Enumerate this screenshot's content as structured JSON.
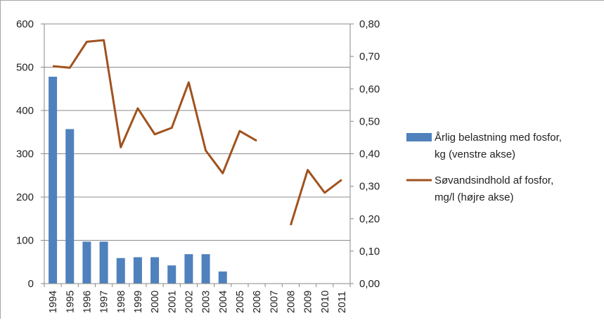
{
  "chart_data": {
    "type": "bar",
    "categories": [
      "1994",
      "1995",
      "1996",
      "1997",
      "1998",
      "1999",
      "2000",
      "2001",
      "2002",
      "2003",
      "2004",
      "2005",
      "2006",
      "2007",
      "2008",
      "2009",
      "2010",
      "2011"
    ],
    "series": [
      {
        "name": "Årlig belastning med fosfor, kg (venstre akse)",
        "type": "bar",
        "axis": "left",
        "color": "#4f81bd",
        "values": [
          478,
          357,
          97,
          97,
          59,
          61,
          61,
          42,
          68,
          68,
          28,
          null,
          null,
          null,
          null,
          null,
          null,
          null
        ]
      },
      {
        "name": "Søvandsindhold af fosfor, mg/l (højre akse)",
        "type": "line",
        "axis": "right",
        "color": "#a0521e",
        "values": [
          0.67,
          0.665,
          0.745,
          0.75,
          0.42,
          0.54,
          0.46,
          0.48,
          0.62,
          0.41,
          0.34,
          0.47,
          0.44,
          null,
          0.18,
          0.35,
          0.28,
          0.32
        ]
      }
    ],
    "left_axis": {
      "ylim": [
        0,
        600
      ],
      "ticks": [
        "0",
        "100",
        "200",
        "300",
        "400",
        "500",
        "600"
      ]
    },
    "right_axis": {
      "ylim": [
        0,
        0.8
      ],
      "ticks": [
        "0,00",
        "0,10",
        "0,20",
        "0,30",
        "0,40",
        "0,50",
        "0,60",
        "0,70",
        "0,80"
      ]
    },
    "legend": {
      "position": "right",
      "items": [
        {
          "line1": "Årlig belastning med fosfor,",
          "line2": "kg (venstre  akse)"
        },
        {
          "line1": "Søvandsindhold  af fosfor,",
          "line2": "mg/l (højre akse)"
        }
      ]
    },
    "grid": true
  }
}
